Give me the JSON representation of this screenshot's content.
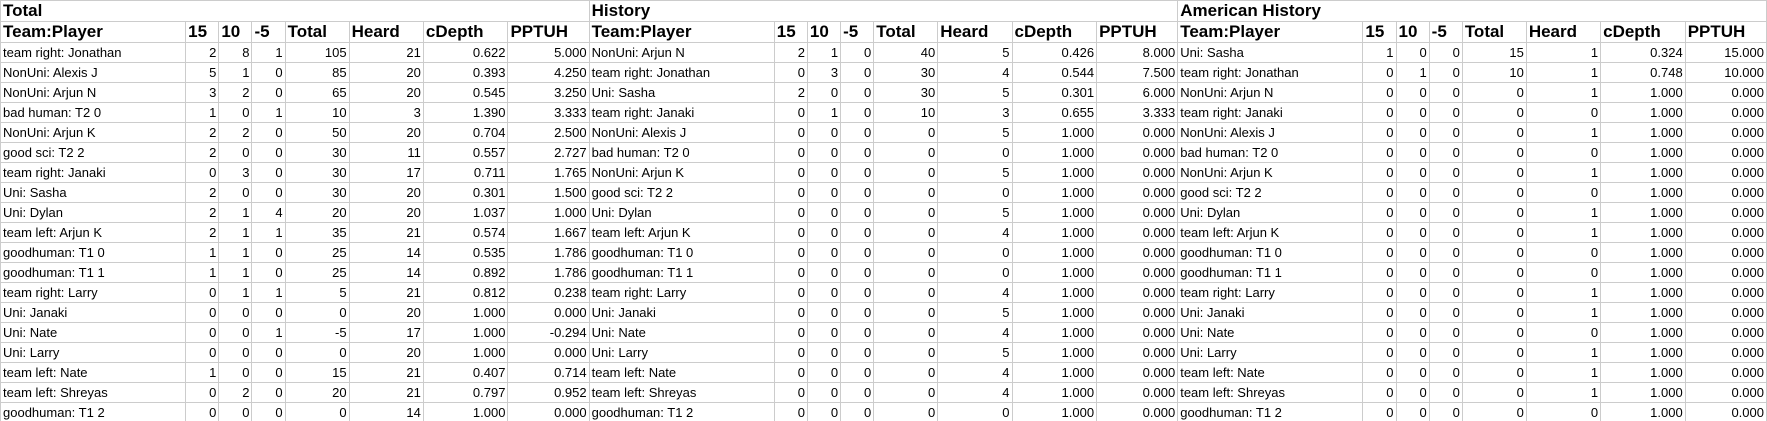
{
  "sections": [
    {
      "title": "Total"
    },
    {
      "title": "History"
    },
    {
      "title": "American History"
    }
  ],
  "columns": [
    "Team:Player",
    "15",
    "10",
    "-5",
    "Total",
    "Heard",
    "cDepth",
    "PPTUH"
  ],
  "rows": [
    [
      [
        "team right: Jonathan",
        "2",
        "8",
        "1",
        "105",
        "21",
        "0.622",
        "5.000"
      ],
      [
        "NonUni: Arjun N",
        "2",
        "1",
        "0",
        "40",
        "5",
        "0.426",
        "8.000"
      ],
      [
        "Uni: Sasha",
        "1",
        "0",
        "0",
        "15",
        "1",
        "0.324",
        "15.000"
      ]
    ],
    [
      [
        "NonUni: Alexis J",
        "5",
        "1",
        "0",
        "85",
        "20",
        "0.393",
        "4.250"
      ],
      [
        "team right: Jonathan",
        "0",
        "3",
        "0",
        "30",
        "4",
        "0.544",
        "7.500"
      ],
      [
        "team right: Jonathan",
        "0",
        "1",
        "0",
        "10",
        "1",
        "0.748",
        "10.000"
      ]
    ],
    [
      [
        "NonUni: Arjun N",
        "3",
        "2",
        "0",
        "65",
        "20",
        "0.545",
        "3.250"
      ],
      [
        "Uni: Sasha",
        "2",
        "0",
        "0",
        "30",
        "5",
        "0.301",
        "6.000"
      ],
      [
        "NonUni: Arjun N",
        "0",
        "0",
        "0",
        "0",
        "1",
        "1.000",
        "0.000"
      ]
    ],
    [
      [
        "bad human: T2 0",
        "1",
        "0",
        "1",
        "10",
        "3",
        "1.390",
        "3.333"
      ],
      [
        "team right: Janaki",
        "0",
        "1",
        "0",
        "10",
        "3",
        "0.655",
        "3.333"
      ],
      [
        "team right: Janaki",
        "0",
        "0",
        "0",
        "0",
        "0",
        "1.000",
        "0.000"
      ]
    ],
    [
      [
        "NonUni: Arjun K",
        "2",
        "2",
        "0",
        "50",
        "20",
        "0.704",
        "2.500"
      ],
      [
        "NonUni: Alexis J",
        "0",
        "0",
        "0",
        "0",
        "5",
        "1.000",
        "0.000"
      ],
      [
        "NonUni: Alexis J",
        "0",
        "0",
        "0",
        "0",
        "1",
        "1.000",
        "0.000"
      ]
    ],
    [
      [
        "good sci: T2 2",
        "2",
        "0",
        "0",
        "30",
        "11",
        "0.557",
        "2.727"
      ],
      [
        "bad human: T2 0",
        "0",
        "0",
        "0",
        "0",
        "0",
        "1.000",
        "0.000"
      ],
      [
        "bad human: T2 0",
        "0",
        "0",
        "0",
        "0",
        "0",
        "1.000",
        "0.000"
      ]
    ],
    [
      [
        "team right: Janaki",
        "0",
        "3",
        "0",
        "30",
        "17",
        "0.711",
        "1.765"
      ],
      [
        "NonUni: Arjun K",
        "0",
        "0",
        "0",
        "0",
        "5",
        "1.000",
        "0.000"
      ],
      [
        "NonUni: Arjun K",
        "0",
        "0",
        "0",
        "0",
        "1",
        "1.000",
        "0.000"
      ]
    ],
    [
      [
        "Uni: Sasha",
        "2",
        "0",
        "0",
        "30",
        "20",
        "0.301",
        "1.500"
      ],
      [
        "good sci: T2 2",
        "0",
        "0",
        "0",
        "0",
        "0",
        "1.000",
        "0.000"
      ],
      [
        "good sci: T2 2",
        "0",
        "0",
        "0",
        "0",
        "0",
        "1.000",
        "0.000"
      ]
    ],
    [
      [
        "Uni: Dylan",
        "2",
        "1",
        "4",
        "20",
        "20",
        "1.037",
        "1.000"
      ],
      [
        "Uni: Dylan",
        "0",
        "0",
        "0",
        "0",
        "5",
        "1.000",
        "0.000"
      ],
      [
        "Uni: Dylan",
        "0",
        "0",
        "0",
        "0",
        "1",
        "1.000",
        "0.000"
      ]
    ],
    [
      [
        "team left: Arjun K",
        "2",
        "1",
        "1",
        "35",
        "21",
        "0.574",
        "1.667"
      ],
      [
        "team left: Arjun K",
        "0",
        "0",
        "0",
        "0",
        "4",
        "1.000",
        "0.000"
      ],
      [
        "team left: Arjun K",
        "0",
        "0",
        "0",
        "0",
        "1",
        "1.000",
        "0.000"
      ]
    ],
    [
      [
        "goodhuman: T1 0",
        "1",
        "1",
        "0",
        "25",
        "14",
        "0.535",
        "1.786"
      ],
      [
        "goodhuman: T1 0",
        "0",
        "0",
        "0",
        "0",
        "0",
        "1.000",
        "0.000"
      ],
      [
        "goodhuman: T1 0",
        "0",
        "0",
        "0",
        "0",
        "0",
        "1.000",
        "0.000"
      ]
    ],
    [
      [
        "goodhuman: T1 1",
        "1",
        "1",
        "0",
        "25",
        "14",
        "0.892",
        "1.786"
      ],
      [
        "goodhuman: T1 1",
        "0",
        "0",
        "0",
        "0",
        "0",
        "1.000",
        "0.000"
      ],
      [
        "goodhuman: T1 1",
        "0",
        "0",
        "0",
        "0",
        "0",
        "1.000",
        "0.000"
      ]
    ],
    [
      [
        "team right: Larry",
        "0",
        "1",
        "1",
        "5",
        "21",
        "0.812",
        "0.238"
      ],
      [
        "team right: Larry",
        "0",
        "0",
        "0",
        "0",
        "4",
        "1.000",
        "0.000"
      ],
      [
        "team right: Larry",
        "0",
        "0",
        "0",
        "0",
        "1",
        "1.000",
        "0.000"
      ]
    ],
    [
      [
        "Uni: Janaki",
        "0",
        "0",
        "0",
        "0",
        "20",
        "1.000",
        "0.000"
      ],
      [
        "Uni: Janaki",
        "0",
        "0",
        "0",
        "0",
        "5",
        "1.000",
        "0.000"
      ],
      [
        "Uni: Janaki",
        "0",
        "0",
        "0",
        "0",
        "1",
        "1.000",
        "0.000"
      ]
    ],
    [
      [
        "Uni: Nate",
        "0",
        "0",
        "1",
        "-5",
        "17",
        "1.000",
        "-0.294"
      ],
      [
        "Uni: Nate",
        "0",
        "0",
        "0",
        "0",
        "4",
        "1.000",
        "0.000"
      ],
      [
        "Uni: Nate",
        "0",
        "0",
        "0",
        "0",
        "0",
        "1.000",
        "0.000"
      ]
    ],
    [
      [
        "Uni: Larry",
        "0",
        "0",
        "0",
        "0",
        "20",
        "1.000",
        "0.000"
      ],
      [
        "Uni: Larry",
        "0",
        "0",
        "0",
        "0",
        "5",
        "1.000",
        "0.000"
      ],
      [
        "Uni: Larry",
        "0",
        "0",
        "0",
        "0",
        "1",
        "1.000",
        "0.000"
      ]
    ],
    [
      [
        "team left: Nate",
        "1",
        "0",
        "0",
        "15",
        "21",
        "0.407",
        "0.714"
      ],
      [
        "team left: Nate",
        "0",
        "0",
        "0",
        "0",
        "4",
        "1.000",
        "0.000"
      ],
      [
        "team left: Nate",
        "0",
        "0",
        "0",
        "0",
        "1",
        "1.000",
        "0.000"
      ]
    ],
    [
      [
        "team left: Shreyas",
        "0",
        "2",
        "0",
        "20",
        "21",
        "0.797",
        "0.952"
      ],
      [
        "team left: Shreyas",
        "0",
        "0",
        "0",
        "0",
        "4",
        "1.000",
        "0.000"
      ],
      [
        "team left: Shreyas",
        "0",
        "0",
        "0",
        "0",
        "1",
        "1.000",
        "0.000"
      ]
    ],
    [
      [
        "goodhuman: T1 2",
        "0",
        "0",
        "0",
        "0",
        "14",
        "1.000",
        "0.000"
      ],
      [
        "goodhuman: T1 2",
        "0",
        "0",
        "0",
        "0",
        "0",
        "1.000",
        "0.000"
      ],
      [
        "goodhuman: T1 2",
        "0",
        "0",
        "0",
        "0",
        "0",
        "1.000",
        "0.000"
      ]
    ]
  ]
}
